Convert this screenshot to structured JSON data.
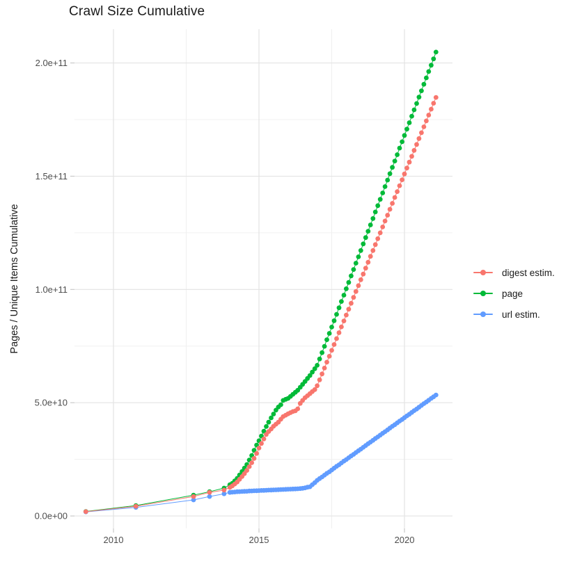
{
  "chart_data": {
    "type": "scatter",
    "title": "Crawl Size Cumulative",
    "xlabel": "",
    "ylabel": "Pages / Unique Items Cumulative",
    "xlim": [
      2008.66,
      2021.65
    ],
    "ylim": [
      -5500000000.0,
      214900000000.0
    ],
    "grid": true,
    "legend_position": "right",
    "x_ticks": [
      {
        "value": 2010,
        "label": "2010"
      },
      {
        "value": 2015,
        "label": "2015"
      },
      {
        "value": 2020,
        "label": "2020"
      }
    ],
    "x_minor": [
      2012.5,
      2017.5
    ],
    "y_ticks": [
      {
        "value": 0,
        "label": "0.0e+00"
      },
      {
        "value": 50000000000.0,
        "label": "5.0e+10"
      },
      {
        "value": 100000000000.0,
        "label": "1.0e+11"
      },
      {
        "value": 150000000000.0,
        "label": "1.5e+11"
      },
      {
        "value": 200000000000.0,
        "label": "2.0e+11"
      }
    ],
    "y_minor": [
      25000000000.0,
      75000000000.0,
      125000000000.0,
      175000000000.0
    ],
    "y_unit": 1000000000.0,
    "legend": {
      "items": [
        {
          "label": "digest estim.",
          "color": "#F8766D"
        },
        {
          "label": "page",
          "color": "#00BA38"
        },
        {
          "label": "url estim.",
          "color": "#619CFF"
        }
      ]
    },
    "series": [
      {
        "name": "page",
        "color": "#00BA38",
        "points": [
          [
            2009.05,
            2.0
          ],
          [
            2010.77,
            4.6
          ],
          [
            2012.75,
            9.2
          ],
          [
            2013.3,
            10.7
          ],
          [
            2013.8,
            12.3
          ],
          [
            2014.0,
            13.8
          ],
          [
            2014.083,
            14.4
          ],
          [
            2014.167,
            15.5
          ],
          [
            2014.25,
            16.6
          ],
          [
            2014.333,
            18.1
          ],
          [
            2014.417,
            19.6
          ],
          [
            2014.5,
            21.1
          ],
          [
            2014.583,
            22.7
          ],
          [
            2014.667,
            24.7
          ],
          [
            2014.75,
            26.7
          ],
          [
            2014.833,
            29.0
          ],
          [
            2014.917,
            31.3
          ],
          [
            2015.0,
            33.2
          ],
          [
            2015.083,
            35.3
          ],
          [
            2015.167,
            37.4
          ],
          [
            2015.25,
            39.5
          ],
          [
            2015.333,
            41.4
          ],
          [
            2015.417,
            43.3
          ],
          [
            2015.5,
            45.0
          ],
          [
            2015.583,
            46.7
          ],
          [
            2015.667,
            48.1
          ],
          [
            2015.75,
            49.1
          ],
          [
            2015.833,
            51.0
          ],
          [
            2015.917,
            51.5
          ],
          [
            2016.0,
            51.9
          ],
          [
            2016.083,
            52.8
          ],
          [
            2016.167,
            53.7
          ],
          [
            2016.25,
            54.6
          ],
          [
            2016.333,
            55.5
          ],
          [
            2016.417,
            56.8
          ],
          [
            2016.5,
            58.1
          ],
          [
            2016.583,
            59.4
          ],
          [
            2016.667,
            60.7
          ],
          [
            2016.75,
            62.0
          ],
          [
            2016.833,
            63.5
          ],
          [
            2016.917,
            65.0
          ],
          [
            2017.0,
            66.5
          ],
          [
            2017.083,
            69.3
          ],
          [
            2017.167,
            72.1
          ],
          [
            2017.25,
            74.9
          ],
          [
            2017.333,
            77.8
          ],
          [
            2017.417,
            80.6
          ],
          [
            2017.5,
            83.4
          ],
          [
            2017.583,
            86.2
          ],
          [
            2017.667,
            89.0
          ],
          [
            2017.75,
            91.9
          ],
          [
            2017.833,
            94.7
          ],
          [
            2017.917,
            97.5
          ],
          [
            2018.0,
            100.3
          ],
          [
            2018.083,
            103.1
          ],
          [
            2018.167,
            106.0
          ],
          [
            2018.25,
            108.8
          ],
          [
            2018.333,
            111.6
          ],
          [
            2018.417,
            114.4
          ],
          [
            2018.5,
            117.2
          ],
          [
            2018.583,
            120.1
          ],
          [
            2018.667,
            122.9
          ],
          [
            2018.75,
            125.7
          ],
          [
            2018.833,
            128.5
          ],
          [
            2018.917,
            131.3
          ],
          [
            2019.0,
            134.2
          ],
          [
            2019.083,
            137.0
          ],
          [
            2019.167,
            139.8
          ],
          [
            2019.25,
            142.6
          ],
          [
            2019.333,
            145.4
          ],
          [
            2019.417,
            148.3
          ],
          [
            2019.5,
            151.1
          ],
          [
            2019.583,
            153.9
          ],
          [
            2019.667,
            156.7
          ],
          [
            2019.75,
            159.5
          ],
          [
            2019.833,
            162.4
          ],
          [
            2019.917,
            165.2
          ],
          [
            2020.0,
            168.0
          ],
          [
            2020.083,
            170.8
          ],
          [
            2020.167,
            173.6
          ],
          [
            2020.25,
            176.5
          ],
          [
            2020.333,
            179.3
          ],
          [
            2020.417,
            182.1
          ],
          [
            2020.5,
            184.9
          ],
          [
            2020.583,
            187.7
          ],
          [
            2020.667,
            190.6
          ],
          [
            2020.75,
            193.4
          ],
          [
            2020.833,
            196.2
          ],
          [
            2020.917,
            199.0
          ],
          [
            2021.0,
            201.8
          ],
          [
            2021.083,
            204.8
          ]
        ]
      },
      {
        "name": "url estim.",
        "color": "#619CFF",
        "points": [
          [
            2009.05,
            1.8
          ],
          [
            2010.77,
            3.8
          ],
          [
            2012.75,
            7.1
          ],
          [
            2013.3,
            8.6
          ],
          [
            2013.8,
            9.8
          ],
          [
            2014.0,
            10.4
          ],
          [
            2014.083,
            10.5
          ],
          [
            2014.167,
            10.6
          ],
          [
            2014.25,
            10.7
          ],
          [
            2014.333,
            10.75
          ],
          [
            2014.417,
            10.8
          ],
          [
            2014.5,
            10.85
          ],
          [
            2014.583,
            10.9
          ],
          [
            2014.667,
            11.0
          ],
          [
            2014.75,
            11.05
          ],
          [
            2014.833,
            11.1
          ],
          [
            2014.917,
            11.15
          ],
          [
            2015.0,
            11.2
          ],
          [
            2015.083,
            11.25
          ],
          [
            2015.167,
            11.3
          ],
          [
            2015.25,
            11.35
          ],
          [
            2015.333,
            11.4
          ],
          [
            2015.417,
            11.45
          ],
          [
            2015.5,
            11.5
          ],
          [
            2015.583,
            11.55
          ],
          [
            2015.667,
            11.6
          ],
          [
            2015.75,
            11.65
          ],
          [
            2015.833,
            11.7
          ],
          [
            2015.917,
            11.75
          ],
          [
            2016.0,
            11.8
          ],
          [
            2016.083,
            11.85
          ],
          [
            2016.167,
            11.9
          ],
          [
            2016.25,
            11.95
          ],
          [
            2016.333,
            12.0
          ],
          [
            2016.417,
            12.1
          ],
          [
            2016.5,
            12.2
          ],
          [
            2016.583,
            12.4
          ],
          [
            2016.667,
            12.7
          ],
          [
            2016.75,
            12.9
          ],
          [
            2016.833,
            13.8
          ],
          [
            2016.917,
            14.7
          ],
          [
            2017.0,
            15.7
          ],
          [
            2017.083,
            16.5
          ],
          [
            2017.167,
            17.2
          ],
          [
            2017.25,
            18.0
          ],
          [
            2017.333,
            18.8
          ],
          [
            2017.417,
            19.5
          ],
          [
            2017.5,
            20.3
          ],
          [
            2017.583,
            21.1
          ],
          [
            2017.667,
            21.9
          ],
          [
            2017.75,
            22.6
          ],
          [
            2017.833,
            23.4
          ],
          [
            2017.917,
            24.2
          ],
          [
            2018.0,
            24.9
          ],
          [
            2018.083,
            25.7
          ],
          [
            2018.167,
            26.5
          ],
          [
            2018.25,
            27.2
          ],
          [
            2018.333,
            28.0
          ],
          [
            2018.417,
            28.8
          ],
          [
            2018.5,
            29.5
          ],
          [
            2018.583,
            30.3
          ],
          [
            2018.667,
            31.1
          ],
          [
            2018.75,
            31.9
          ],
          [
            2018.833,
            32.6
          ],
          [
            2018.917,
            33.4
          ],
          [
            2019.0,
            34.2
          ],
          [
            2019.083,
            34.9
          ],
          [
            2019.167,
            35.7
          ],
          [
            2019.25,
            36.5
          ],
          [
            2019.333,
            37.2
          ],
          [
            2019.417,
            38.0
          ],
          [
            2019.5,
            38.8
          ],
          [
            2019.583,
            39.6
          ],
          [
            2019.667,
            40.3
          ],
          [
            2019.75,
            41.1
          ],
          [
            2019.833,
            41.9
          ],
          [
            2019.917,
            42.6
          ],
          [
            2020.0,
            43.4
          ],
          [
            2020.083,
            44.2
          ],
          [
            2020.167,
            44.9
          ],
          [
            2020.25,
            45.7
          ],
          [
            2020.333,
            46.5
          ],
          [
            2020.417,
            47.2
          ],
          [
            2020.5,
            48.0
          ],
          [
            2020.583,
            48.8
          ],
          [
            2020.667,
            49.6
          ],
          [
            2020.75,
            50.3
          ],
          [
            2020.833,
            51.1
          ],
          [
            2020.917,
            51.9
          ],
          [
            2021.0,
            52.6
          ],
          [
            2021.083,
            53.4
          ]
        ]
      },
      {
        "name": "digest estim.",
        "color": "#F8766D",
        "points": [
          [
            2009.05,
            1.9
          ],
          [
            2010.77,
            4.3
          ],
          [
            2012.75,
            8.6
          ],
          [
            2013.3,
            10.4
          ],
          [
            2013.8,
            11.4
          ],
          [
            2014.0,
            12.6
          ],
          [
            2014.083,
            13.3
          ],
          [
            2014.167,
            14.1
          ],
          [
            2014.25,
            15.0
          ],
          [
            2014.333,
            16.2
          ],
          [
            2014.417,
            17.4
          ],
          [
            2014.5,
            18.7
          ],
          [
            2014.583,
            20.1
          ],
          [
            2014.667,
            21.8
          ],
          [
            2014.75,
            23.5
          ],
          [
            2014.833,
            25.4
          ],
          [
            2014.917,
            27.6
          ],
          [
            2015.0,
            30.0
          ],
          [
            2015.083,
            32.0
          ],
          [
            2015.167,
            34.0
          ],
          [
            2015.25,
            36.0
          ],
          [
            2015.333,
            37.3
          ],
          [
            2015.417,
            38.4
          ],
          [
            2015.5,
            39.6
          ],
          [
            2015.583,
            40.5
          ],
          [
            2015.667,
            41.4
          ],
          [
            2015.75,
            42.7
          ],
          [
            2015.833,
            43.9
          ],
          [
            2015.917,
            44.5
          ],
          [
            2016.0,
            45.1
          ],
          [
            2016.083,
            45.6
          ],
          [
            2016.167,
            46.1
          ],
          [
            2016.25,
            46.4
          ],
          [
            2016.333,
            47.3
          ],
          [
            2016.417,
            49.7
          ],
          [
            2016.5,
            51.0
          ],
          [
            2016.583,
            52.2
          ],
          [
            2016.667,
            53.1
          ],
          [
            2016.75,
            54.0
          ],
          [
            2016.833,
            54.9
          ],
          [
            2016.917,
            55.8
          ],
          [
            2017.0,
            57.5
          ],
          [
            2017.083,
            60.1
          ],
          [
            2017.167,
            62.7
          ],
          [
            2017.25,
            65.3
          ],
          [
            2017.333,
            67.9
          ],
          [
            2017.417,
            70.5
          ],
          [
            2017.5,
            73.1
          ],
          [
            2017.583,
            75.7
          ],
          [
            2017.667,
            78.3
          ],
          [
            2017.75,
            80.9
          ],
          [
            2017.833,
            83.5
          ],
          [
            2017.917,
            86.1
          ],
          [
            2018.0,
            88.7
          ],
          [
            2018.083,
            91.3
          ],
          [
            2018.167,
            93.9
          ],
          [
            2018.25,
            96.5
          ],
          [
            2018.333,
            99.1
          ],
          [
            2018.417,
            101.7
          ],
          [
            2018.5,
            104.3
          ],
          [
            2018.583,
            106.8
          ],
          [
            2018.667,
            109.4
          ],
          [
            2018.75,
            112.0
          ],
          [
            2018.833,
            114.6
          ],
          [
            2018.917,
            117.2
          ],
          [
            2019.0,
            119.8
          ],
          [
            2019.083,
            122.4
          ],
          [
            2019.167,
            125.0
          ],
          [
            2019.25,
            127.6
          ],
          [
            2019.333,
            130.2
          ],
          [
            2019.417,
            132.8
          ],
          [
            2019.5,
            135.4
          ],
          [
            2019.583,
            138.0
          ],
          [
            2019.667,
            140.6
          ],
          [
            2019.75,
            143.2
          ],
          [
            2019.833,
            145.8
          ],
          [
            2019.917,
            148.4
          ],
          [
            2020.0,
            151.0
          ],
          [
            2020.083,
            153.6
          ],
          [
            2020.167,
            156.2
          ],
          [
            2020.25,
            158.8
          ],
          [
            2020.333,
            161.4
          ],
          [
            2020.417,
            164.0
          ],
          [
            2020.5,
            166.6
          ],
          [
            2020.583,
            169.2
          ],
          [
            2020.667,
            171.8
          ],
          [
            2020.75,
            174.4
          ],
          [
            2020.833,
            177.0
          ],
          [
            2020.917,
            179.6
          ],
          [
            2021.0,
            182.2
          ],
          [
            2021.083,
            184.8
          ]
        ]
      }
    ],
    "colors": {
      "grid_major": "#E3E3E3",
      "grid_minor": "#F0F0F0",
      "tick_mark": "#C9C9C9",
      "tick_text": "#4d4d4d"
    }
  }
}
